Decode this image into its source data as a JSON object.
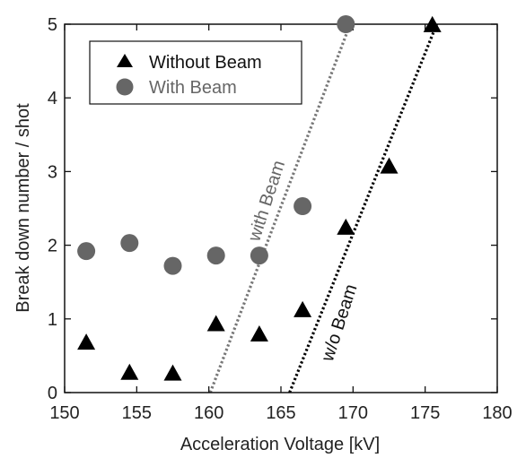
{
  "chart_data": {
    "type": "scatter",
    "title": "",
    "xlabel": "Acceleration Voltage [kV]",
    "ylabel": "Break down number / shot",
    "xlim": [
      150,
      180
    ],
    "ylim": [
      0,
      5
    ],
    "xticks": [
      150,
      155,
      160,
      165,
      170,
      175,
      180
    ],
    "yticks": [
      0,
      1,
      2,
      3,
      4,
      5
    ],
    "grid": false,
    "legend_position": "top-left",
    "series": [
      {
        "name": "Without Beam",
        "marker": "triangle",
        "color": "#000000",
        "points": [
          {
            "x": 151.5,
            "y": 0.68
          },
          {
            "x": 154.5,
            "y": 0.27
          },
          {
            "x": 157.5,
            "y": 0.26
          },
          {
            "x": 160.5,
            "y": 0.93
          },
          {
            "x": 163.5,
            "y": 0.79
          },
          {
            "x": 166.5,
            "y": 1.12
          },
          {
            "x": 169.5,
            "y": 2.24
          },
          {
            "x": 172.5,
            "y": 3.07
          },
          {
            "x": 175.5,
            "y": 4.99
          }
        ]
      },
      {
        "name": "With Beam",
        "marker": "circle",
        "color": "#666666",
        "points": [
          {
            "x": 151.5,
            "y": 1.92
          },
          {
            "x": 154.5,
            "y": 2.03
          },
          {
            "x": 157.5,
            "y": 1.72
          },
          {
            "x": 160.5,
            "y": 1.86
          },
          {
            "x": 163.5,
            "y": 1.86
          },
          {
            "x": 166.5,
            "y": 2.53
          },
          {
            "x": 169.5,
            "y": 5.0
          }
        ]
      }
    ],
    "fit_lines": [
      {
        "label": "with Beam",
        "color": "#777777",
        "style": "dotted",
        "x": [
          160.1,
          169.8
        ],
        "y": [
          0,
          5
        ]
      },
      {
        "label": "w/o Beam",
        "color": "#000000",
        "style": "dotted",
        "x": [
          165.6,
          175.8
        ],
        "y": [
          0,
          5
        ]
      }
    ]
  }
}
